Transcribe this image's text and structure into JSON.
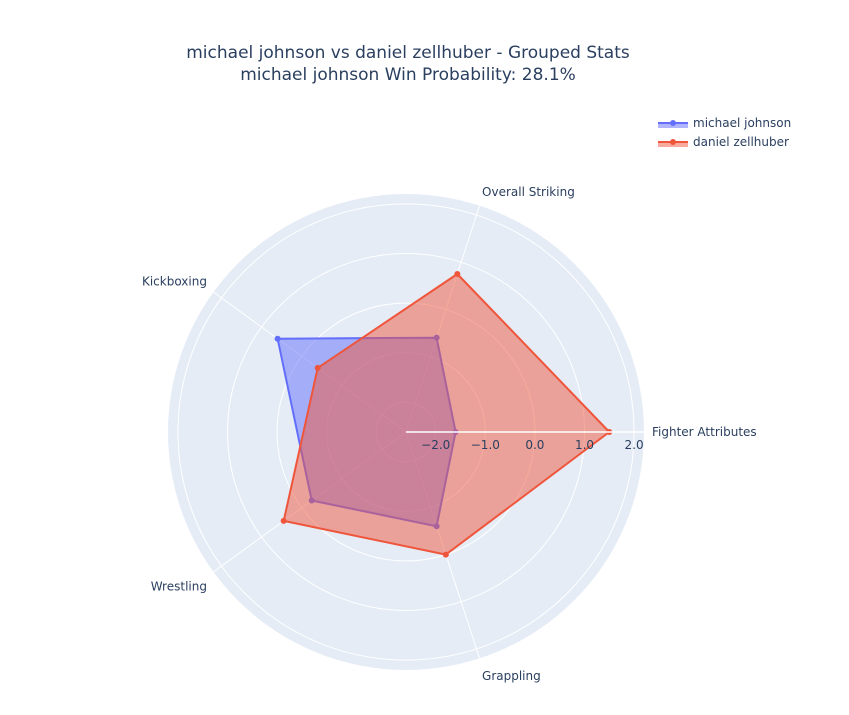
{
  "chart_data": {
    "type": "radar",
    "title": "michael johnson vs daniel zellhuber - Grouped Stats",
    "subtitle": "michael johnson Win Probability: 28.1%",
    "categories": [
      "Fighter Attributes",
      "Overall Striking",
      "Kickboxing",
      "Wrestling",
      "Grappling"
    ],
    "radial_range": [
      -2.6,
      2.2
    ],
    "radial_ticks": [
      "−2.0",
      "−1.0",
      "0.0",
      "1.0",
      "2.0"
    ],
    "radial_tick_values": [
      -2,
      -1,
      0,
      1,
      2
    ],
    "legend_position": "top-right",
    "series": [
      {
        "name": "michael johnson",
        "color": "#636efa",
        "values": [
          -1.6,
          -0.6,
          0.6,
          -0.25,
          -0.6
        ]
      },
      {
        "name": "daniel zellhuber",
        "color": "#ef553b",
        "values": [
          1.5,
          0.75,
          -0.4,
          0.45,
          0.0
        ]
      }
    ]
  }
}
